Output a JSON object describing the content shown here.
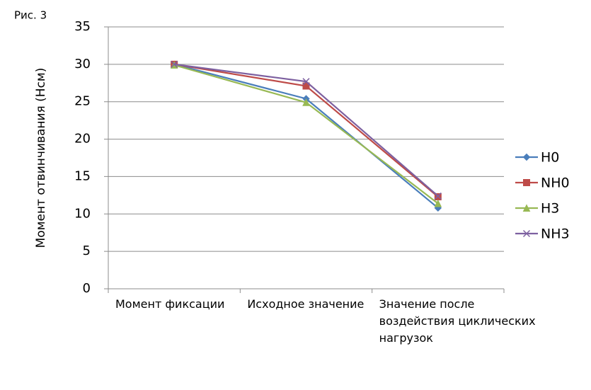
{
  "chart_data": {
    "type": "line",
    "title": "Рис. 3",
    "y_label": "Момент отвинчивания (Нсм)",
    "categories": [
      "Момент фиксации",
      "Исходное значение",
      "Значение после воздействия циклических нагрузок"
    ],
    "series": [
      {
        "name": "H0",
        "color": "#4a7ebb",
        "marker": "diamond",
        "values": [
          30,
          25.4,
          10.8
        ]
      },
      {
        "name": "NH0",
        "color": "#be4b48",
        "marker": "square",
        "values": [
          30,
          27.1,
          12.3
        ]
      },
      {
        "name": "H3",
        "color": "#98b954",
        "marker": "triangle",
        "values": [
          29.9,
          24.9,
          11.4
        ]
      },
      {
        "name": "NH3",
        "color": "#7d60a0",
        "marker": "x",
        "values": [
          30,
          27.7,
          12.4
        ]
      }
    ],
    "ylim": [
      0,
      35
    ],
    "yticks": [
      0,
      5,
      10,
      15,
      20,
      25,
      30,
      35
    ],
    "grid": true,
    "legend": "right"
  }
}
